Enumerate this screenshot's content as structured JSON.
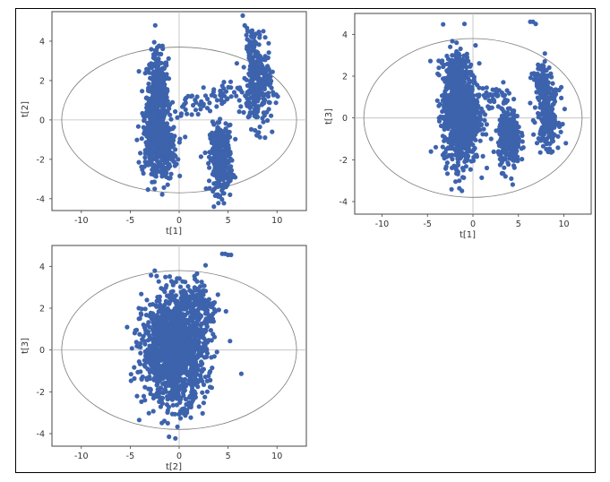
{
  "chart_data": [
    {
      "type": "scatter",
      "xlabel": "t[1]",
      "ylabel": "t[2]",
      "xlim": [
        -13,
        13
      ],
      "ylim": [
        -4.6,
        5.5
      ],
      "xticks": [
        "-10",
        "-5",
        "0",
        "5",
        "10"
      ],
      "yticks": [
        "-4",
        "-2",
        "0",
        "2",
        "4"
      ],
      "ellipse": {
        "rx": 12.0,
        "ry": 3.7
      },
      "marker_color": "#3d63ad",
      "series": [
        {
          "clusters": [
            {
              "cx": -2.2,
              "cy": 1.2,
              "sx": 0.55,
              "sy": 1.1,
              "n": 420
            },
            {
              "cx": -1.6,
              "cy": -1.5,
              "sx": 0.7,
              "sy": 0.8,
              "n": 260
            },
            {
              "cx": -3.0,
              "cy": -1.2,
              "sx": 0.45,
              "sy": 0.8,
              "n": 120
            },
            {
              "cx": 4.3,
              "cy": -2.0,
              "sx": 0.55,
              "sy": 0.85,
              "n": 360
            },
            {
              "cx": 8.0,
              "cy": 1.6,
              "sx": 0.7,
              "sy": 1.0,
              "n": 260
            },
            {
              "cx": 7.5,
              "cy": 3.6,
              "sx": 0.35,
              "sy": 0.6,
              "n": 70
            },
            {
              "cx": 3.8,
              "cy": 1.2,
              "sx": 1.1,
              "sy": 0.35,
              "n": 40
            },
            {
              "cx": 0.8,
              "cy": 0.6,
              "sx": 0.9,
              "sy": 0.35,
              "n": 25
            }
          ],
          "points": [
            [
              6.5,
              5.3
            ],
            [
              6.7,
              4.8
            ],
            [
              7.0,
              4.5
            ],
            [
              5.2,
              -3.8
            ],
            [
              -2.5,
              -3.5
            ],
            [
              9.5,
              -0.6
            ]
          ]
        }
      ]
    },
    {
      "type": "scatter",
      "xlabel": "t[1]",
      "ylabel": "t[3]",
      "xlim": [
        -13,
        13
      ],
      "ylim": [
        -4.6,
        5.0
      ],
      "xticks": [
        "-10",
        "-5",
        "0",
        "5",
        "10"
      ],
      "yticks": [
        "-4",
        "-2",
        "0",
        "2",
        "4"
      ],
      "ellipse": {
        "rx": 12.0,
        "ry": 3.8
      },
      "marker_color": "#3d63ad",
      "series": [
        {
          "clusters": [
            {
              "cx": -1.3,
              "cy": 0.2,
              "sx": 1.0,
              "sy": 1.2,
              "n": 950
            },
            {
              "cx": -2.0,
              "cy": 2.2,
              "sx": 0.6,
              "sy": 0.6,
              "n": 110
            },
            {
              "cx": 4.0,
              "cy": -1.0,
              "sx": 0.6,
              "sy": 0.7,
              "n": 330
            },
            {
              "cx": 8.3,
              "cy": 0.0,
              "sx": 0.6,
              "sy": 0.7,
              "n": 200
            },
            {
              "cx": 7.5,
              "cy": 1.7,
              "sx": 0.5,
              "sy": 0.5,
              "n": 90
            },
            {
              "cx": 2.3,
              "cy": 1.0,
              "sx": 1.0,
              "sy": 0.3,
              "n": 35
            }
          ],
          "points": [
            [
              6.3,
              4.6
            ],
            [
              6.6,
              4.6
            ],
            [
              6.9,
              4.5
            ],
            [
              -1.8,
              3.6
            ],
            [
              -2.5,
              3.4
            ],
            [
              -1.5,
              -3.0
            ]
          ]
        }
      ]
    },
    {
      "type": "scatter",
      "xlabel": "t[2]",
      "ylabel": "t[3]",
      "xlim": [
        -13,
        13
      ],
      "ylim": [
        -4.6,
        5.0
      ],
      "xticks": [
        "-10",
        "-5",
        "0",
        "5",
        "10"
      ],
      "yticks": [
        "-4",
        "-2",
        "0",
        "2",
        "4"
      ],
      "ellipse": {
        "rx": 12.0,
        "ry": 3.8
      },
      "marker_color": "#3d63ad",
      "series": [
        {
          "clusters": [
            {
              "cx": -0.5,
              "cy": 0.0,
              "sx": 1.6,
              "sy": 1.25,
              "n": 1500
            },
            {
              "cx": 1.5,
              "cy": 2.4,
              "sx": 1.0,
              "sy": 0.5,
              "n": 90
            },
            {
              "cx": 3.0,
              "cy": 1.8,
              "sx": 0.5,
              "sy": 0.6,
              "n": 40
            }
          ],
          "points": [
            [
              4.4,
              4.6
            ],
            [
              4.7,
              4.6
            ],
            [
              5.0,
              4.55
            ],
            [
              5.3,
              4.55
            ],
            [
              0.8,
              -3.0
            ],
            [
              -3.5,
              -2.4
            ]
          ]
        }
      ]
    }
  ]
}
